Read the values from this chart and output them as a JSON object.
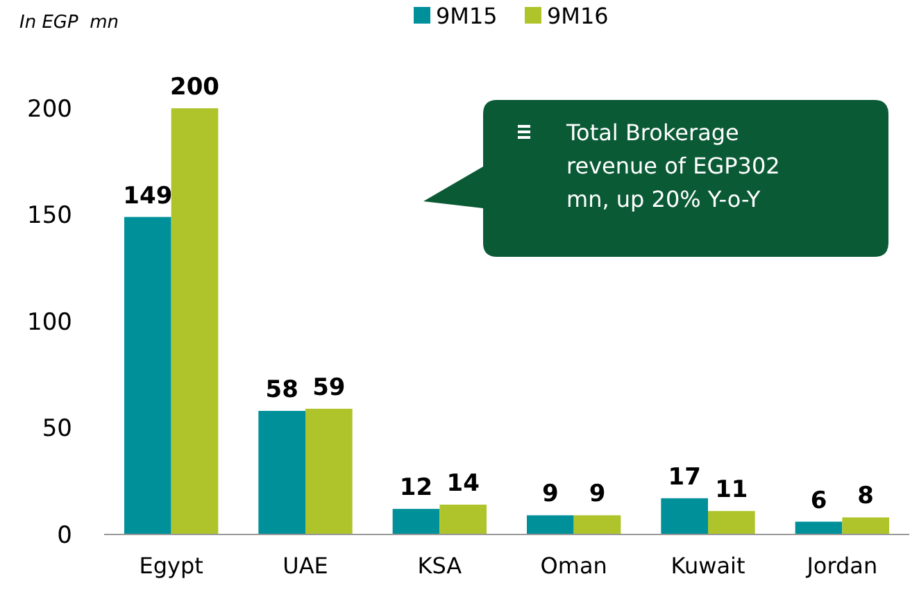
{
  "chart_data": {
    "type": "bar",
    "ylabel": "In EGP  mn",
    "categories": [
      "Egypt",
      "UAE",
      "KSA",
      "Oman",
      "Kuwait",
      "Jordan"
    ],
    "series": [
      {
        "name": "9M15",
        "color": "#00909a",
        "values": [
          149,
          58,
          12,
          9,
          17,
          6
        ]
      },
      {
        "name": "9M16",
        "color": "#afc42a",
        "values": [
          200,
          59,
          14,
          9,
          11,
          8
        ]
      }
    ],
    "ylim": [
      0,
      200
    ],
    "yticks": [
      0,
      50,
      100,
      150,
      200
    ],
    "grid": false,
    "legend": "top",
    "data_labels": true,
    "annotations": [
      "Total Brokerage revenue of EGP302 mn, up 20% Y-o-Y"
    ]
  }
}
